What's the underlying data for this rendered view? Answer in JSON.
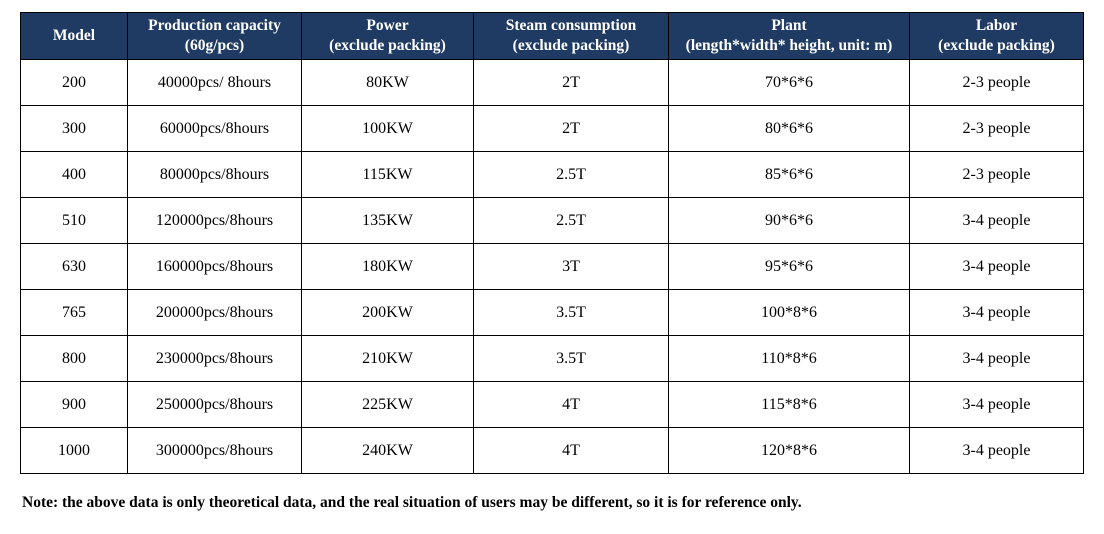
{
  "table": {
    "headers": [
      {
        "line1": "Model",
        "line2": ""
      },
      {
        "line1": "Production capacity",
        "line2": "(60g/pcs)"
      },
      {
        "line1": "Power",
        "line2": "(exclude packing)"
      },
      {
        "line1": "Steam consumption",
        "line2": "(exclude packing)"
      },
      {
        "line1": "Plant",
        "line2": "(length*width* height, unit: m)"
      },
      {
        "line1": "Labor",
        "line2": "(exclude packing)"
      }
    ],
    "rows": [
      [
        "200",
        "40000pcs/ 8hours",
        "80KW",
        "2T",
        "70*6*6",
        "2-3 people"
      ],
      [
        "300",
        "60000pcs/8hours",
        "100KW",
        "2T",
        "80*6*6",
        "2-3 people"
      ],
      [
        "400",
        "80000pcs/8hours",
        "115KW",
        "2.5T",
        "85*6*6",
        "2-3 people"
      ],
      [
        "510",
        "120000pcs/8hours",
        "135KW",
        "2.5T",
        "90*6*6",
        "3-4 people"
      ],
      [
        "630",
        "160000pcs/8hours",
        "180KW",
        "3T",
        "95*6*6",
        "3-4 people"
      ],
      [
        "765",
        "200000pcs/8hours",
        "200KW",
        "3.5T",
        "100*8*6",
        "3-4 people"
      ],
      [
        "800",
        "230000pcs/8hours",
        "210KW",
        "3.5T",
        "110*8*6",
        "3-4 people"
      ],
      [
        "900",
        "250000pcs/8hours",
        "225KW",
        "4T",
        "115*8*6",
        "3-4 people"
      ],
      [
        "1000",
        "300000pcs/8hours",
        "240KW",
        "4T",
        "120*8*6",
        "3-4 people"
      ]
    ]
  },
  "note": "Note: the above data is only theoretical data, and the real situation of users may be different, so it is for reference only.",
  "colors": {
    "header_background": "#1f3b63",
    "header_text": "#ffffff",
    "border": "#000000"
  }
}
